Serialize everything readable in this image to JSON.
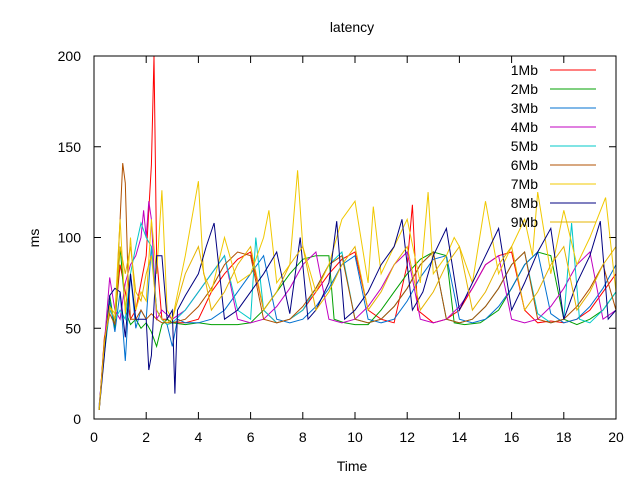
{
  "chart_data": {
    "type": "line",
    "title": "latency",
    "xlabel": "Time",
    "ylabel": "ms",
    "xlim": [
      0,
      20
    ],
    "ylim": [
      0,
      200
    ],
    "x_ticks": [
      0,
      2,
      4,
      6,
      8,
      10,
      12,
      14,
      16,
      18,
      20
    ],
    "y_ticks": [
      0,
      50,
      100,
      150,
      200
    ],
    "grid": false,
    "legend_position": "top-right",
    "series": [
      {
        "name": "1Mb",
        "color": "#ff0000",
        "x": [
          0.2,
          0.4,
          0.6,
          0.8,
          1.0,
          1.2,
          1.4,
          1.6,
          1.8,
          2.0,
          2.2,
          2.3,
          2.4,
          2.6,
          2.8,
          3.0,
          3.5,
          4.0,
          4.5,
          5.0,
          5.5,
          6.0,
          6.5,
          7.0,
          7.5,
          8.0,
          8.5,
          9.0,
          9.5,
          10.0,
          10.5,
          11.0,
          11.5,
          12.0,
          12.2,
          12.4,
          13.0,
          13.5,
          14.0,
          14.5,
          15.0,
          15.5,
          16.0,
          16.5,
          17.0,
          17.5,
          18.0,
          18.5,
          19.0,
          19.5,
          20.0
        ],
        "y": [
          5,
          45,
          60,
          55,
          85,
          70,
          55,
          60,
          75,
          90,
          140,
          200,
          90,
          55,
          55,
          53,
          53,
          55,
          70,
          80,
          88,
          92,
          60,
          53,
          55,
          60,
          70,
          80,
          88,
          92,
          60,
          55,
          53,
          85,
          118,
          60,
          53,
          55,
          60,
          72,
          85,
          90,
          92,
          60,
          53,
          54,
          53,
          55,
          60,
          70,
          80
        ]
      },
      {
        "name": "2Mb",
        "color": "#00a000",
        "x": [
          0.2,
          0.4,
          0.6,
          0.8,
          1.0,
          1.2,
          1.4,
          1.6,
          1.8,
          2.0,
          2.2,
          2.4,
          2.6,
          2.8,
          3.0,
          3.5,
          4.0,
          4.5,
          5.0,
          5.5,
          6.0,
          6.5,
          7.0,
          7.5,
          8.0,
          8.5,
          9.0,
          9.2,
          9.6,
          10.0,
          10.5,
          11.0,
          11.5,
          12.0,
          12.5,
          13.0,
          13.5,
          13.8,
          14.2,
          14.8,
          15.5,
          16.0,
          16.5,
          17.0,
          17.5,
          18.0,
          18.5,
          19.0,
          19.5,
          20.0
        ],
        "y": [
          6,
          40,
          68,
          50,
          95,
          60,
          52,
          55,
          50,
          53,
          48,
          40,
          52,
          55,
          53,
          52,
          53,
          52,
          52,
          52,
          53,
          60,
          70,
          80,
          88,
          90,
          90,
          55,
          53,
          52,
          52,
          60,
          70,
          80,
          88,
          92,
          90,
          53,
          52,
          53,
          60,
          72,
          85,
          92,
          90,
          55,
          52,
          55,
          60,
          70
        ]
      },
      {
        "name": "3Mb",
        "color": "#0070d0",
        "x": [
          0.2,
          0.4,
          0.6,
          0.8,
          1.0,
          1.2,
          1.4,
          1.6,
          1.8,
          2.0,
          2.2,
          2.4,
          2.6,
          2.8,
          3.0,
          3.2,
          3.5,
          4.0,
          4.5,
          5.0,
          5.5,
          6.0,
          6.5,
          7.0,
          7.5,
          8.0,
          8.5,
          9.0,
          9.5,
          10.0,
          10.5,
          11.0,
          11.5,
          12.0,
          12.5,
          13.0,
          13.5,
          14.0,
          14.5,
          15.0,
          15.5,
          16.0,
          16.5,
          17.0,
          17.5,
          18.0,
          18.5,
          19.0,
          19.5,
          20.0
        ],
        "y": [
          8,
          38,
          65,
          48,
          70,
          32,
          80,
          50,
          60,
          55,
          95,
          60,
          55,
          52,
          40,
          55,
          53,
          53,
          55,
          60,
          70,
          80,
          90,
          55,
          53,
          55,
          62,
          72,
          85,
          90,
          55,
          53,
          55,
          65,
          78,
          88,
          90,
          55,
          53,
          55,
          62,
          72,
          85,
          92,
          58,
          53,
          55,
          62,
          72,
          85
        ]
      },
      {
        "name": "4Mb",
        "color": "#c000c0",
        "x": [
          0.2,
          0.4,
          0.6,
          0.8,
          1.0,
          1.2,
          1.4,
          1.6,
          1.8,
          1.9,
          2.0,
          2.1,
          2.2,
          2.4,
          2.6,
          3.0,
          3.5,
          4.0,
          4.5,
          5.0,
          5.5,
          6.0,
          6.5,
          7.0,
          7.5,
          8.0,
          8.5,
          9.0,
          9.5,
          10.0,
          10.5,
          11.0,
          11.5,
          12.0,
          12.5,
          13.0,
          13.5,
          14.0,
          14.5,
          15.0,
          15.5,
          16.0,
          16.5,
          17.0,
          17.5,
          18.0,
          18.5,
          19.0,
          19.5,
          20.0
        ],
        "y": [
          7,
          42,
          78,
          60,
          55,
          75,
          85,
          90,
          100,
          115,
          100,
          120,
          110,
          55,
          60,
          55,
          60,
          70,
          80,
          90,
          55,
          53,
          55,
          62,
          72,
          85,
          92,
          55,
          53,
          55,
          62,
          72,
          85,
          92,
          55,
          53,
          55,
          62,
          72,
          85,
          90,
          55,
          53,
          55,
          62,
          72,
          85,
          92,
          55,
          60
        ]
      },
      {
        "name": "5Mb",
        "color": "#00c8c8",
        "x": [
          0.2,
          0.4,
          0.6,
          0.8,
          1.0,
          1.2,
          1.4,
          1.6,
          1.8,
          2.0,
          2.2,
          2.4,
          2.6,
          2.8,
          3.0,
          3.5,
          4.0,
          4.5,
          5.0,
          5.5,
          6.0,
          6.2,
          6.5,
          7.0,
          7.5,
          8.0,
          8.5,
          9.0,
          9.5,
          10.0,
          10.5,
          11.0,
          11.5,
          12.0,
          12.5,
          13.0,
          13.5,
          14.0,
          14.5,
          15.0,
          15.5,
          16.0,
          16.5,
          17.0,
          17.5,
          18.0,
          18.3,
          18.6,
          19.0,
          19.5,
          20.0
        ],
        "y": [
          6,
          36,
          60,
          55,
          60,
          55,
          80,
          95,
          108,
          100,
          95,
          60,
          55,
          52,
          53,
          60,
          70,
          80,
          90,
          60,
          55,
          100,
          60,
          53,
          55,
          60,
          72,
          85,
          92,
          55,
          53,
          55,
          62,
          72,
          85,
          92,
          55,
          53,
          55,
          62,
          72,
          85,
          92,
          58,
          53,
          55,
          108,
          55,
          53,
          60,
          70
        ]
      },
      {
        "name": "6Mb",
        "color": "#b05000",
        "x": [
          0.2,
          0.4,
          0.6,
          0.8,
          1.0,
          1.1,
          1.2,
          1.3,
          1.4,
          1.6,
          1.8,
          2.0,
          2.2,
          2.4,
          2.6,
          3.0,
          3.5,
          4.0,
          4.5,
          5.0,
          5.5,
          6.0,
          6.5,
          7.0,
          7.5,
          8.0,
          8.5,
          9.0,
          9.5,
          10.0,
          10.5,
          11.0,
          11.5,
          12.0,
          12.5,
          13.0,
          13.5,
          14.0,
          14.5,
          15.0,
          15.5,
          16.0,
          16.5,
          17.0,
          17.5,
          18.0,
          18.5,
          19.0,
          19.5,
          20.0
        ],
        "y": [
          5,
          44,
          58,
          52,
          110,
          141,
          130,
          80,
          55,
          55,
          60,
          55,
          58,
          55,
          53,
          53,
          55,
          62,
          72,
          85,
          92,
          90,
          55,
          53,
          55,
          62,
          72,
          85,
          90,
          55,
          53,
          55,
          62,
          72,
          85,
          92,
          55,
          53,
          55,
          62,
          72,
          85,
          92,
          55,
          53,
          55,
          62,
          72,
          85,
          60
        ]
      },
      {
        "name": "7Mb",
        "color": "#f0c800",
        "x": [
          0.2,
          0.4,
          0.6,
          0.8,
          1.0,
          1.2,
          1.4,
          1.6,
          1.8,
          2.0,
          2.2,
          2.4,
          2.6,
          2.8,
          3.0,
          3.5,
          4.0,
          4.2,
          4.5,
          5.0,
          5.2,
          5.5,
          6.0,
          6.5,
          6.7,
          7.0,
          7.5,
          7.8,
          8.0,
          8.5,
          9.0,
          9.5,
          10.0,
          10.5,
          10.7,
          11.0,
          11.5,
          12.0,
          12.5,
          12.8,
          13.0,
          13.5,
          13.8,
          14.0,
          14.5,
          15.0,
          15.5,
          16.0,
          16.5,
          16.8,
          17.0,
          17.5,
          18.0,
          18.5,
          19.0,
          19.6,
          20.0
        ],
        "y": [
          5,
          40,
          62,
          58,
          110,
          58,
          100,
          60,
          70,
          65,
          110,
          80,
          126,
          60,
          55,
          90,
          131,
          80,
          70,
          100,
          90,
          75,
          80,
          100,
          115,
          75,
          85,
          137,
          95,
          70,
          85,
          110,
          120,
          75,
          117,
          80,
          95,
          110,
          75,
          125,
          80,
          90,
          100,
          95,
          75,
          120,
          80,
          95,
          110,
          90,
          125,
          80,
          115,
          85,
          100,
          122,
          70
        ]
      },
      {
        "name": "8Mb",
        "color": "#000080",
        "x": [
          0.2,
          0.4,
          0.6,
          0.8,
          1.0,
          1.2,
          1.4,
          1.6,
          1.8,
          2.0,
          2.1,
          2.2,
          2.4,
          2.6,
          2.8,
          3.0,
          3.1,
          3.2,
          3.5,
          4.0,
          4.3,
          4.6,
          5.0,
          5.5,
          6.0,
          6.5,
          7.0,
          7.5,
          7.9,
          8.2,
          8.5,
          9.0,
          9.3,
          9.6,
          10.0,
          10.5,
          11.0,
          11.5,
          11.8,
          12.2,
          12.6,
          13.0,
          13.5,
          14.0,
          14.5,
          15.0,
          15.5,
          16.0,
          16.5,
          17.0,
          17.5,
          18.0,
          18.5,
          19.0,
          19.4,
          19.7,
          20.0
        ],
        "y": [
          5,
          35,
          68,
          72,
          70,
          45,
          80,
          55,
          55,
          55,
          27,
          35,
          90,
          90,
          55,
          60,
          14,
          60,
          68,
          80,
          95,
          108,
          55,
          60,
          70,
          80,
          92,
          58,
          100,
          55,
          60,
          75,
          109,
          55,
          60,
          70,
          85,
          95,
          110,
          60,
          70,
          90,
          105,
          60,
          75,
          90,
          105,
          60,
          75,
          92,
          105,
          55,
          75,
          90,
          109,
          55,
          60
        ]
      },
      {
        "name": "9Mb",
        "color": "#e6b400",
        "x": [
          0.2,
          0.4,
          0.6,
          0.8,
          1.0,
          1.2,
          1.4,
          1.6,
          1.8,
          2.0,
          2.2,
          2.4,
          2.6,
          2.8,
          3.0,
          3.5,
          4.0,
          4.5,
          5.0,
          5.5,
          6.0,
          6.5,
          7.0,
          7.5,
          8.0,
          8.5,
          9.0,
          9.5,
          10.0,
          10.5,
          11.0,
          11.5,
          12.0,
          12.5,
          13.0,
          13.5,
          14.0,
          14.5,
          15.0,
          15.5,
          16.0,
          16.5,
          17.0,
          17.5,
          18.0,
          18.5,
          19.0,
          19.5,
          20.0
        ],
        "y": [
          5,
          42,
          62,
          55,
          95,
          80,
          95,
          70,
          65,
          80,
          90,
          60,
          55,
          53,
          55,
          80,
          95,
          60,
          70,
          85,
          95,
          60,
          70,
          85,
          95,
          60,
          70,
          85,
          95,
          60,
          70,
          85,
          95,
          60,
          70,
          85,
          95,
          60,
          70,
          85,
          95,
          60,
          70,
          85,
          95,
          60,
          70,
          85,
          95
        ]
      }
    ]
  }
}
